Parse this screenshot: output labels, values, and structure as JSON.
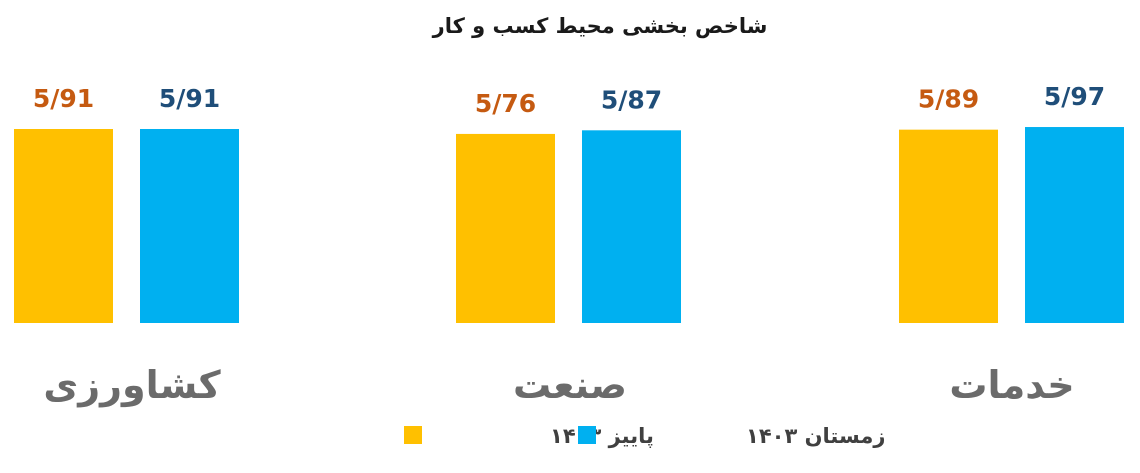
{
  "chart_data": {
    "type": "bar",
    "title": "شاخص بخشی محیط کسب و کار",
    "categories": [
      "کشاورزی",
      "صنعت",
      "خدمات"
    ],
    "series": [
      {
        "name": "پاییز ۱۴۰۳",
        "color": "#FFC000",
        "label_color": "#C55A11",
        "values": [
          5.91,
          5.76,
          5.89
        ],
        "labels": [
          "5/91",
          "5/76",
          "5/89"
        ]
      },
      {
        "name": "زمستان ۱۴۰۳",
        "color": "#00B0F0",
        "label_color": "#1F4E79",
        "values": [
          5.91,
          5.87,
          5.97
        ],
        "labels": [
          "5/91",
          "5/87",
          "5/97"
        ]
      }
    ],
    "legend_position": "bottom",
    "grid": false,
    "axes_visible": false
  }
}
